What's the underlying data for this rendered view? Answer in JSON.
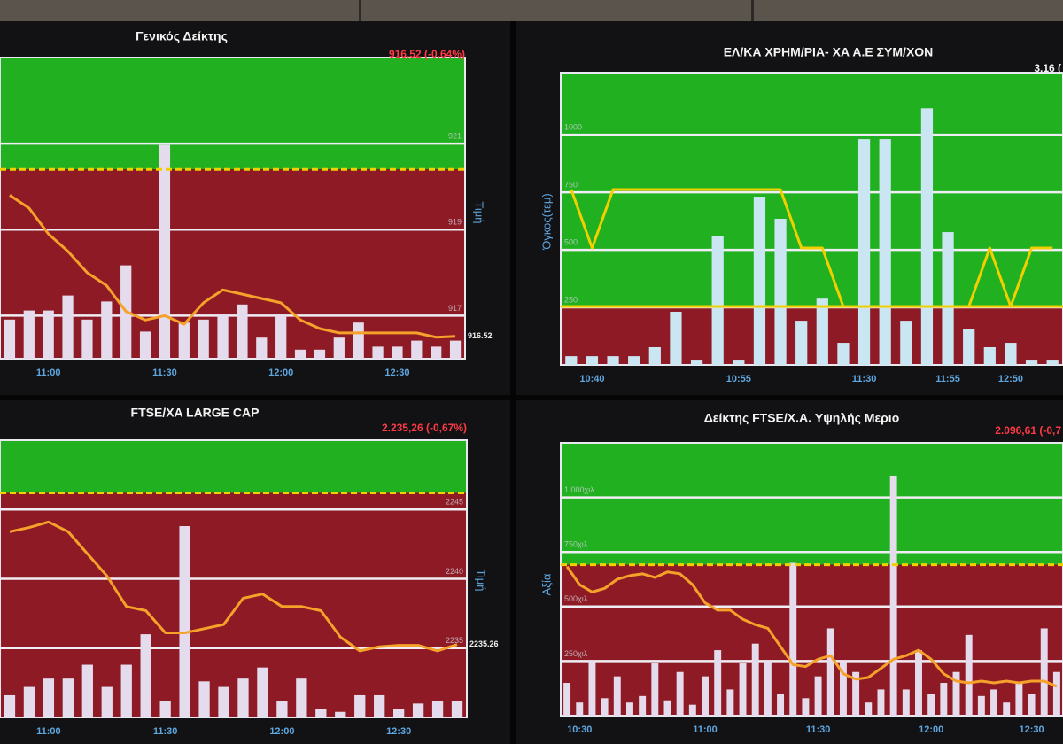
{
  "chart_data": [
    {
      "type": "bar-line",
      "title": "Γενικός Δείκτης",
      "change_label": "916,52 (-0,64%)",
      "y2label": "Τιμή",
      "categories": [
        null,
        null,
        "11:00",
        null,
        null,
        null,
        null,
        null,
        "11:30",
        null,
        null,
        null,
        null,
        null,
        "12:00",
        null,
        null,
        null,
        null,
        null,
        "12:30",
        null,
        null,
        null
      ],
      "series": [
        {
          "kind": "bar",
          "color": "#e4dcec",
          "axis": "y",
          "values": [
            13,
            16,
            16,
            21,
            13,
            19,
            31,
            9,
            71,
            12,
            13,
            15,
            18,
            7,
            15,
            3,
            3,
            7,
            12,
            4,
            4,
            6,
            4,
            6
          ]
        },
        {
          "kind": "line",
          "color": "#f5a12a",
          "axis": "y2",
          "end_label": "916.52",
          "values": [
            919.8,
            919.5,
            918.9,
            918.5,
            918.0,
            917.7,
            917.1,
            916.9,
            917.0,
            916.8,
            917.3,
            917.6,
            917.5,
            917.4,
            917.3,
            916.9,
            916.7,
            916.6,
            916.6,
            916.6,
            916.6,
            916.6,
            916.5,
            916.52
          ]
        }
      ],
      "ylim": [
        0,
        100
      ],
      "y2lim": [
        916,
        923
      ],
      "y2ticks": [
        917,
        919,
        921
      ],
      "threshold": 920.4,
      "threshold_style": "dashed",
      "zone_colors": {
        "above": "#20b020",
        "below": "#8d1a25"
      }
    },
    {
      "type": "bar-line",
      "title": "ΕΛ/ΚΑ ΧΡΗΜ/ΡΙΑ- ΧΑ Α.Ε ΣΥΜ/ΧΟΝ",
      "change_label": "3,16 (",
      "ylabel": "Όγκος(τεμ)",
      "categories": [
        null,
        "10:40",
        null,
        null,
        null,
        null,
        null,
        null,
        "10:55",
        null,
        null,
        null,
        null,
        null,
        "11:30",
        null,
        null,
        null,
        "11:55",
        null,
        null,
        "12:50",
        null,
        null
      ],
      "series": [
        {
          "kind": "bar",
          "color": "#cbe6f3",
          "axis": "y",
          "values": [
            38,
            38,
            38,
            38,
            77,
            231,
            19,
            558,
            19,
            731,
            635,
            192,
            288,
            96,
            981,
            981,
            192,
            1115,
            577,
            154,
            77,
            96,
            19,
            19
          ]
        },
        {
          "kind": "line",
          "color": "#f2d000",
          "axis": "y2",
          "values": [
            3.18,
            3.16,
            3.18,
            3.18,
            3.18,
            3.18,
            3.18,
            3.18,
            3.18,
            3.18,
            3.18,
            3.16,
            3.16,
            3.14,
            3.14,
            3.14,
            3.14,
            3.14,
            3.14,
            3.14,
            3.16,
            3.14,
            3.16,
            3.16
          ]
        }
      ],
      "ylim": [
        0,
        1270
      ],
      "yticks": [
        250,
        500,
        750,
        1000
      ],
      "y2lim": [
        3.12,
        3.22
      ],
      "threshold": 3.14,
      "threshold_style": "solid",
      "zone_colors": {
        "above": "#20b020",
        "below": "#8d1a25"
      }
    },
    {
      "type": "bar-line",
      "title": "FTSE/XA LARGE CAP",
      "change_label": "2.235,26 (-0,67%)",
      "y2label": "Τιμή",
      "categories": [
        null,
        null,
        "11:00",
        null,
        null,
        null,
        null,
        null,
        "11:30",
        null,
        null,
        null,
        null,
        null,
        "12:00",
        null,
        null,
        null,
        null,
        null,
        "12:30",
        null,
        null,
        null
      ],
      "series": [
        {
          "kind": "bar",
          "color": "#e4dcec",
          "axis": "y",
          "values": [
            8,
            11,
            14,
            14,
            19,
            11,
            19,
            30,
            6,
            69,
            13,
            11,
            14,
            18,
            6,
            14,
            3,
            2,
            8,
            8,
            3,
            5,
            6,
            6
          ]
        },
        {
          "kind": "line",
          "color": "#f5a12a",
          "axis": "y2",
          "end_label": "2235.26",
          "values": [
            2243.4,
            2243.7,
            2244.1,
            2243.4,
            2241.8,
            2240.2,
            2238.0,
            2237.7,
            2236.1,
            2236.1,
            2236.4,
            2236.7,
            2238.6,
            2238.9,
            2238.0,
            2238.0,
            2237.7,
            2235.8,
            2234.8,
            2235.1,
            2235.2,
            2235.2,
            2234.8,
            2235.26
          ]
        }
      ],
      "ylim": [
        0,
        100
      ],
      "y2lim": [
        2230,
        2250
      ],
      "y2ticks": [
        2235,
        2240,
        2245
      ],
      "threshold": 2246.2,
      "threshold_style": "dashed",
      "zone_colors": {
        "above": "#20b020",
        "below": "#8d1a25"
      }
    },
    {
      "type": "bar-line",
      "title": "Δείκτης FTSE/X.A. Υψηλής Μεριο",
      "change_label": "2.096,61 (-0,7",
      "ylabel": "Αξία",
      "categories": [
        null,
        "10:30",
        null,
        null,
        null,
        null,
        null,
        null,
        null,
        null,
        null,
        "11:00",
        null,
        null,
        null,
        null,
        null,
        null,
        null,
        null,
        "11:30",
        null,
        null,
        null,
        null,
        null,
        null,
        null,
        null,
        "12:00",
        null,
        null,
        null,
        null,
        null,
        null,
        null,
        "12:30",
        null,
        null
      ],
      "series": [
        {
          "kind": "bar",
          "color": "#e4dcec",
          "axis": "y",
          "values": [
            150000,
            60000,
            250000,
            80000,
            180000,
            60000,
            90000,
            240000,
            70000,
            200000,
            50000,
            180000,
            300000,
            120000,
            240000,
            330000,
            250000,
            100000,
            700000,
            80000,
            180000,
            400000,
            250000,
            200000,
            60000,
            120000,
            1100000,
            120000,
            300000,
            100000,
            150000,
            200000,
            370000,
            90000,
            120000,
            60000,
            150000,
            100000,
            400000,
            200000
          ]
        },
        {
          "kind": "line",
          "color": "#f5a12a",
          "axis": "y2",
          "values": [
            2103.2,
            2102.2,
            2101.8,
            2102.0,
            2102.5,
            2102.7,
            2102.8,
            2102.6,
            2102.9,
            2102.8,
            2102.2,
            2101.2,
            2100.8,
            2100.8,
            2100.3,
            2100.0,
            2099.8,
            2098.8,
            2097.8,
            2097.7,
            2098.1,
            2098.3,
            2097.3,
            2097.0,
            2097.1,
            2097.6,
            2098.1,
            2098.3,
            2098.6,
            2098.1,
            2097.3,
            2096.9,
            2096.8,
            2096.9,
            2096.8,
            2096.9,
            2096.8,
            2096.9,
            2096.9,
            2096.61
          ]
        }
      ],
      "ylim": [
        0,
        1250000
      ],
      "yticks": [
        {
          "value": 250000,
          "label": "250χιλ"
        },
        {
          "value": 500000,
          "label": "500χιλ"
        },
        {
          "value": 750000,
          "label": "750χιλ"
        },
        {
          "value": 1000000,
          "label": "1.000χιλ"
        }
      ],
      "y2lim": [
        2095,
        2110
      ],
      "threshold": 2103.3,
      "threshold_style": "dashed",
      "zone_colors": {
        "above": "#20b020",
        "below": "#8d1a25"
      }
    }
  ]
}
